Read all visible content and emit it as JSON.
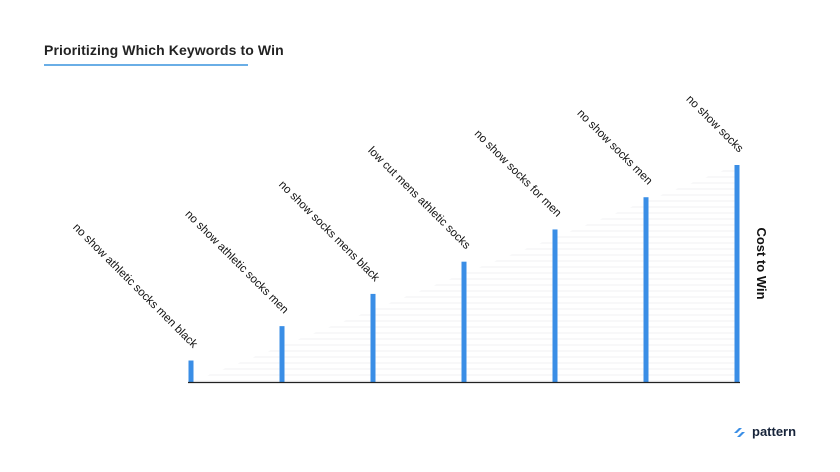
{
  "slide": {
    "title": "Prioritizing Which Keywords to Win",
    "brand_name": "pattern"
  },
  "colors": {
    "bar": "#3a8ee6",
    "title_underline": "#6aaee6",
    "axis": "#222222",
    "text": "#111111"
  },
  "chart_data": {
    "type": "bar",
    "title": "",
    "xlabel": "",
    "ylabel": "Cost to Win",
    "categories": [
      "no show athletic socks men black",
      "no show athletic socks men",
      "no show socks mens black",
      "low cut mens athletic socks",
      "no show socks for men",
      "no show socks men",
      "no show socks"
    ],
    "values": [
      1,
      2.6,
      4.1,
      5.6,
      7.1,
      8.6,
      10.1
    ],
    "ylim": [
      0,
      10.1
    ],
    "grid": false,
    "ylabel_position": "right"
  }
}
